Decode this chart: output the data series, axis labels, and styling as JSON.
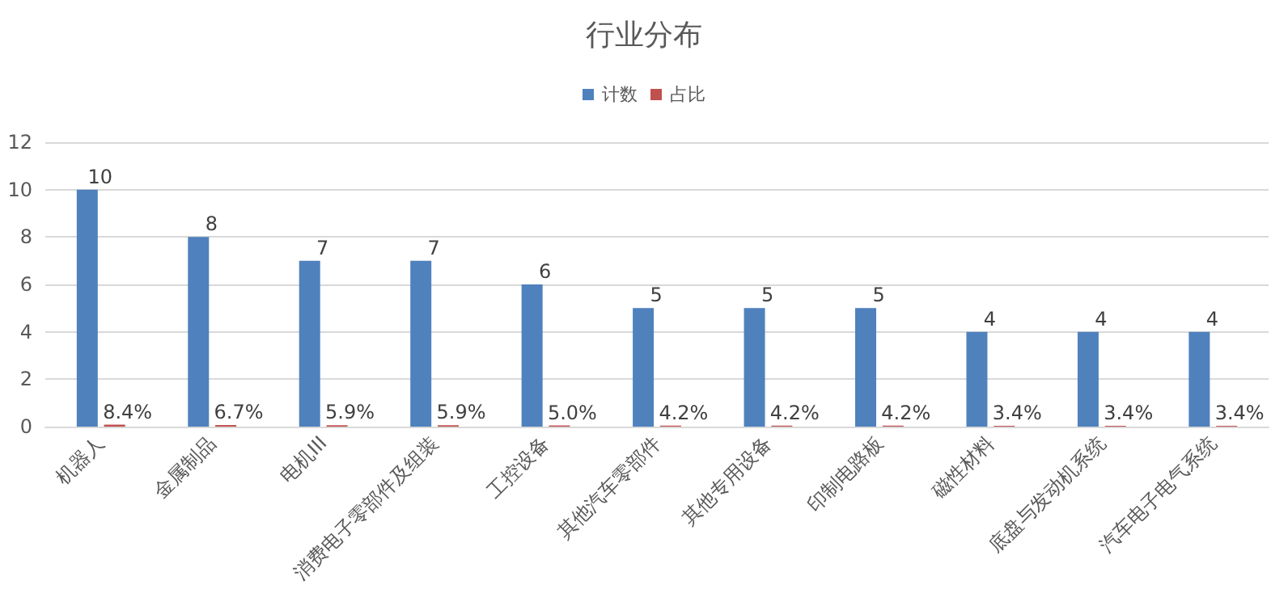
{
  "chart_data": {
    "type": "bar",
    "title": "行业分布",
    "categories": [
      "机器人",
      "金属制品",
      "电机III",
      "消费电子零部件及组装",
      "工控设备",
      "其他汽车零部件",
      "其他专用设备",
      "印制电路板",
      "磁性材料",
      "底盘与发动机系统",
      "汽车电子电气系统"
    ],
    "series": [
      {
        "name": "计数",
        "color": "#4f81bd",
        "values": [
          10,
          8,
          7,
          7,
          6,
          5,
          5,
          5,
          4,
          4,
          4
        ],
        "value_labels": [
          "10",
          "8",
          "7",
          "7",
          "6",
          "5",
          "5",
          "5",
          "4",
          "4",
          "4"
        ]
      },
      {
        "name": "占比",
        "color": "#c0504d",
        "values": [
          0.084,
          0.067,
          0.059,
          0.059,
          0.05,
          0.042,
          0.042,
          0.042,
          0.034,
          0.034,
          0.034
        ],
        "value_labels": [
          "8.4%",
          "6.7%",
          "5.9%",
          "5.9%",
          "5.0%",
          "4.2%",
          "4.2%",
          "4.2%",
          "3.4%",
          "3.4%",
          "3.4%"
        ]
      }
    ],
    "ylim": [
      0,
      12
    ],
    "yticks": [
      0,
      2,
      4,
      6,
      8,
      10,
      12
    ],
    "grid": "y",
    "legend": "top"
  }
}
